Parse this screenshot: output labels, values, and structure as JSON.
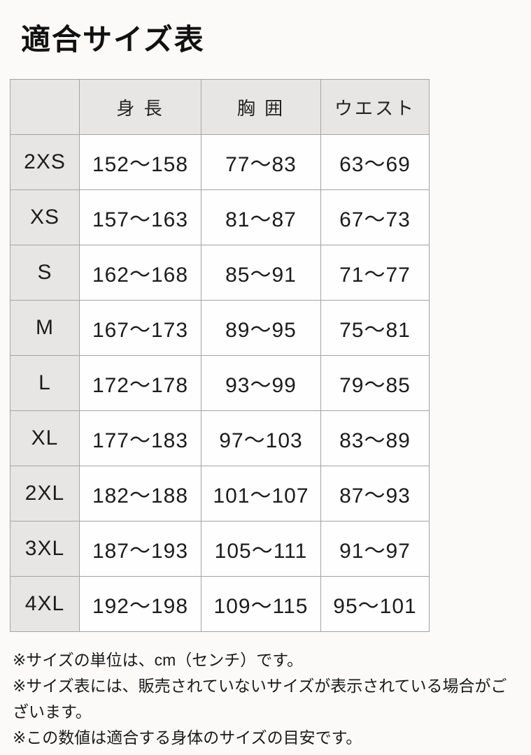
{
  "page": {
    "title": "適合サイズ表",
    "background": "#fbfaf9"
  },
  "table": {
    "header": {
      "size": "",
      "height": "身 長",
      "chest": "胸 囲",
      "waist": "ウエスト"
    },
    "rows": [
      {
        "size": "2XS",
        "height": "152～158",
        "chest": "77～83",
        "waist": "63～69"
      },
      {
        "size": "XS",
        "height": "157～163",
        "chest": "81～87",
        "waist": "67～73"
      },
      {
        "size": "S",
        "height": "162～168",
        "chest": "85～91",
        "waist": "71～77"
      },
      {
        "size": "M",
        "height": "167～173",
        "chest": "89～95",
        "waist": "75～81"
      },
      {
        "size": "L",
        "height": "172～178",
        "chest": "93～99",
        "waist": "79～85"
      },
      {
        "size": "XL",
        "height": "177～183",
        "chest": "97～103",
        "waist": "83～89"
      },
      {
        "size": "2XL",
        "height": "182～188",
        "chest": "101～107",
        "waist": "87～93"
      },
      {
        "size": "3XL",
        "height": "187～193",
        "chest": "105～111",
        "waist": "91～97"
      },
      {
        "size": "4XL",
        "height": "192～198",
        "chest": "109～115",
        "waist": "95～101"
      }
    ]
  },
  "notes": {
    "note1": "※サイズの単位は、cm（センチ）です。",
    "note2": "※サイズ表には、販売されていないサイズが表示されている場合がございます。",
    "note3": "※この数値は適合する身体のサイズの目安です。"
  },
  "colors": {
    "header_bg": "#e8e6e5",
    "cell_bg": "#fefefe",
    "border": "#a5a3a4",
    "text": "#1c1c1c",
    "page_bg": "#fbfaf9"
  },
  "chart_data": {
    "type": "table",
    "title": "適合サイズ表",
    "columns": [
      "",
      "身長",
      "胸囲",
      "ウエスト"
    ],
    "unit": "cm",
    "rows": [
      [
        "2XS",
        "152～158",
        "77～83",
        "63～69"
      ],
      [
        "XS",
        "157～163",
        "81～87",
        "67～73"
      ],
      [
        "S",
        "162～168",
        "85～91",
        "71～77"
      ],
      [
        "M",
        "167～173",
        "89～95",
        "75～81"
      ],
      [
        "L",
        "172～178",
        "93～99",
        "79～85"
      ],
      [
        "XL",
        "177～183",
        "97～103",
        "83～89"
      ],
      [
        "2XL",
        "182～188",
        "101～107",
        "87～93"
      ],
      [
        "3XL",
        "187～193",
        "105～111",
        "91～97"
      ],
      [
        "4XL",
        "192～198",
        "109～115",
        "95～101"
      ]
    ],
    "notes": [
      "※サイズの単位は、cm（センチ）です。",
      "※サイズ表には、販売されていないサイズが表示されている場合がございます。",
      "※この数値は適合する身体のサイズの目安です。"
    ]
  }
}
